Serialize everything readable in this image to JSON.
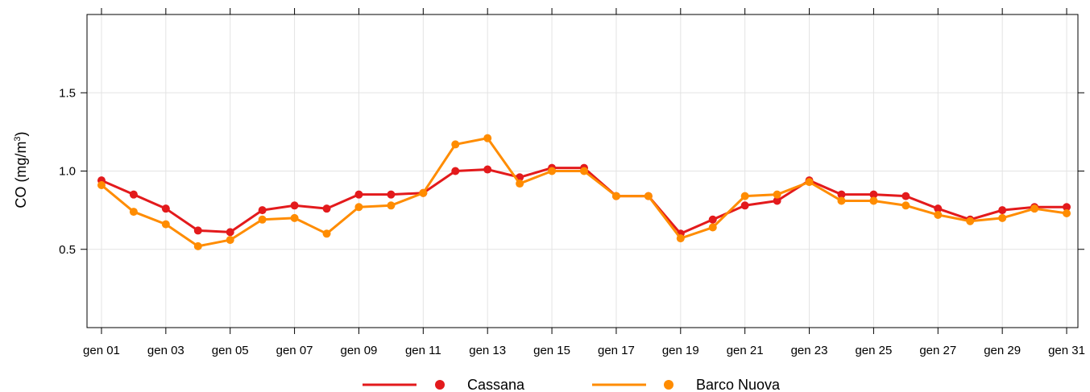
{
  "chart_data": {
    "type": "line",
    "ylabel_main": "CO (mg/m",
    "ylabel_sup": "3",
    "ylabel_close": ")",
    "ylim": [
      0,
      2
    ],
    "yticks": [
      0.5,
      1.0,
      1.5
    ],
    "ytick_labels": [
      "0.5",
      "1.0",
      "1.5"
    ],
    "x": [
      1,
      2,
      3,
      4,
      5,
      6,
      7,
      8,
      9,
      10,
      11,
      12,
      13,
      14,
      15,
      16,
      17,
      18,
      19,
      20,
      21,
      22,
      23,
      24,
      25,
      26,
      27,
      28,
      29,
      30,
      31
    ],
    "xticks": [
      1,
      3,
      5,
      7,
      9,
      11,
      13,
      15,
      17,
      19,
      21,
      23,
      25,
      27,
      29,
      31
    ],
    "xtick_labels": [
      "gen 01",
      "gen 03",
      "gen 05",
      "gen 07",
      "gen 09",
      "gen 11",
      "gen 13",
      "gen 15",
      "gen 17",
      "gen 19",
      "gen 21",
      "gen 23",
      "gen 25",
      "gen 27",
      "gen 29",
      "gen 31"
    ],
    "grid": true,
    "legend_position": "bottom",
    "series": [
      {
        "name": "Cassana",
        "color": "#e31a1c",
        "values": [
          0.94,
          0.85,
          0.76,
          0.62,
          0.61,
          0.75,
          0.78,
          0.76,
          0.85,
          0.85,
          0.86,
          1.0,
          1.01,
          0.96,
          1.02,
          1.02,
          0.84,
          0.84,
          0.6,
          0.69,
          0.78,
          0.81,
          0.94,
          0.85,
          0.85,
          0.84,
          0.76,
          0.69,
          0.75,
          0.77,
          0.77
        ]
      },
      {
        "name": "Barco Nuova",
        "color": "#ff8c00",
        "values": [
          0.91,
          0.74,
          0.66,
          0.52,
          0.56,
          0.69,
          0.7,
          0.6,
          0.77,
          0.78,
          0.86,
          1.17,
          1.21,
          0.92,
          1.0,
          1.0,
          0.84,
          0.84,
          0.57,
          0.64,
          0.84,
          0.85,
          0.93,
          0.81,
          0.81,
          0.78,
          0.72,
          0.68,
          0.7,
          0.76,
          0.73
        ]
      }
    ]
  }
}
